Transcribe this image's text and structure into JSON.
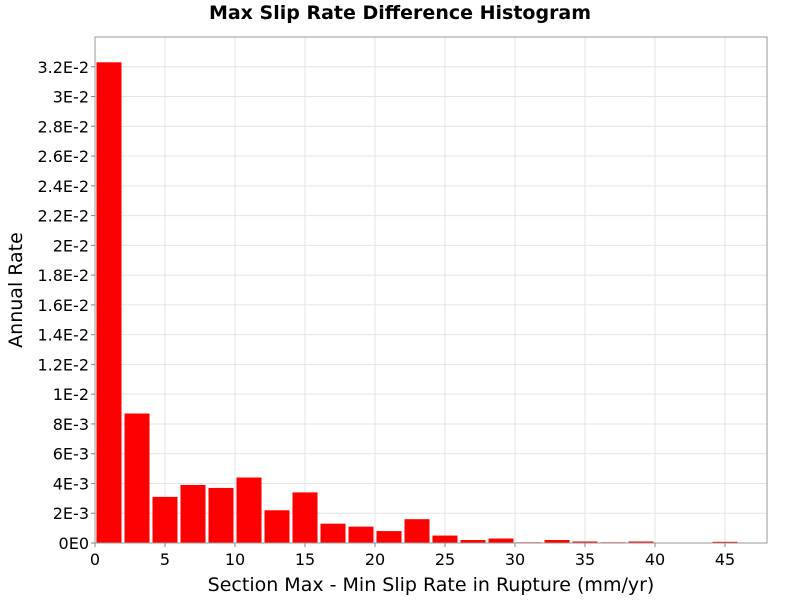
{
  "chart_data": {
    "type": "bar",
    "title": "Max Slip Rate Difference Histogram",
    "xlabel": "Section Max - Min Slip Rate in Rupture (mm/yr)",
    "ylabel": "Annual Rate",
    "xlim": [
      0,
      48
    ],
    "ylim": [
      0,
      0.034
    ],
    "bin_width": 2,
    "grid": true,
    "bar_color": "#ff0000",
    "plot_background": "#ffffff",
    "grid_color": "#e4e4e4",
    "x_ticks": [
      0,
      5,
      10,
      15,
      20,
      25,
      30,
      35,
      40,
      45
    ],
    "x_tick_labels": [
      "0",
      "5",
      "10",
      "15",
      "20",
      "25",
      "30",
      "35",
      "40",
      "45"
    ],
    "y_ticks": [
      0,
      0.002,
      0.004,
      0.006,
      0.008,
      0.01,
      0.012,
      0.014,
      0.016,
      0.018,
      0.02,
      0.022,
      0.024,
      0.026,
      0.028,
      0.03,
      0.032
    ],
    "y_tick_labels": [
      "0E0",
      "2E-3",
      "4E-3",
      "6E-3",
      "8E-3",
      "1E-2",
      "1.2E-2",
      "1.4E-2",
      "1.6E-2",
      "1.8E-2",
      "2E-2",
      "2.2E-2",
      "2.4E-2",
      "2.6E-2",
      "2.8E-2",
      "3E-2",
      "3.2E-2"
    ],
    "x": [
      1,
      3,
      5,
      7,
      9,
      11,
      13,
      15,
      17,
      19,
      21,
      23,
      25,
      27,
      29,
      31,
      33,
      35,
      37,
      39,
      41,
      43,
      45,
      47
    ],
    "values": [
      0.0323,
      0.0087,
      0.0031,
      0.0039,
      0.0037,
      0.0044,
      0.0022,
      0.0034,
      0.0013,
      0.0011,
      0.0008,
      0.0016,
      0.0005,
      0.0002,
      0.0003,
      5e-05,
      0.0002,
      0.0001,
      5e-05,
      0.0001,
      3e-05,
      3e-05,
      8e-05,
      2e-05
    ]
  }
}
